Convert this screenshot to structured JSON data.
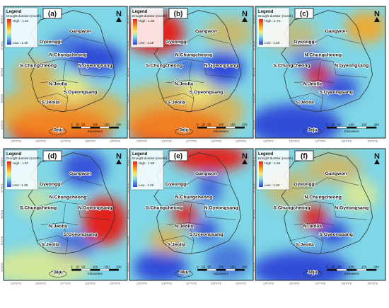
{
  "figure": {
    "panels": [
      {
        "letter": "(a)",
        "high": "High : 1.54",
        "low": "Low : 1.42",
        "regions": [
          "Gangwon",
          "Gyeonggi",
          "N.Chungcheong",
          "S.Chungcheong",
          "N.Gyeongsang",
          "N.Jeolla",
          "S.Gyeongsang",
          "S.Jeolla",
          "Jeju"
        ]
      },
      {
        "letter": "(b)",
        "high": "High : 1.66",
        "low": "Low : 1.28",
        "regions": [
          "Gangwon",
          "Gyeonggi",
          "N.Chungcheong",
          "S.Chungcheong",
          "N.Gyeongsang",
          "N.Jeolla",
          "S.Gyeongsang",
          "S.Jeolla",
          "Jeju"
        ]
      },
      {
        "letter": "(c)",
        "high": "High : 1.74",
        "low": "Low : 1.20",
        "regions": [
          "Gangwon",
          "Gyeonggi",
          "N.Chungcheong",
          "S.Chungcheong",
          "N.Gyeongsang",
          "N.Jeolla",
          "S.Gyeongsang",
          "S.Jeolla",
          "Jeju"
        ]
      },
      {
        "letter": "(d)",
        "high": "High : 1.57",
        "low": "Low : 1.35",
        "regions": [
          "Gangwon",
          "Gyeonggi",
          "N.Chungcheong",
          "S.Chungcheong",
          "N.Gyeongsang",
          "N.Jeolla",
          "S.Gyeongsang",
          "S.Jeolla",
          "Jeju"
        ]
      },
      {
        "letter": "(e)",
        "high": "High : 1.55",
        "low": "Low : 1.20",
        "regions": [
          "Gangwon",
          "Gyeonggi",
          "N.Chungcheong",
          "S.Chungcheong",
          "N.Gyeongsang",
          "N.Jeolla",
          "S.Gyeongsang",
          "S.Jeolla",
          "Jeju"
        ]
      },
      {
        "letter": "(f)",
        "high": "High : 1.84",
        "low": "Low : 1.20",
        "regions": [
          "Gangwon",
          "Gyeonggi",
          "N.Chungcheong",
          "S.Chungcheong",
          "N.Gyeongsang",
          "N.Jeolla",
          "S.Gyeongsang",
          "S.Jeolla",
          "Jeju"
        ]
      }
    ],
    "legend_title": "Legend",
    "legend_subtitle": "Drought duration (month)",
    "north": "N",
    "scale_ticks": [
      "0",
      "25",
      "50",
      "100",
      "150",
      "200"
    ],
    "scale_unit": "Kilometers",
    "lon_labels": [
      "125°0'0\"E",
      "126°0'0\"E",
      "127°0'0\"E",
      "128°0'0\"E",
      "129°0'0\"E"
    ],
    "lat_labels": [
      "38°0'0\"N",
      "37°0'0\"N",
      "36°0'0\"N",
      "35°0'0\"N",
      "34°0'0\"N"
    ],
    "colors": {
      "red": "#e2231a",
      "orange": "#f6a623",
      "yellow": "#f5ee7a",
      "cyan": "#7fd6e6",
      "blue": "#2a3fd6",
      "frame": "#222222"
    }
  }
}
